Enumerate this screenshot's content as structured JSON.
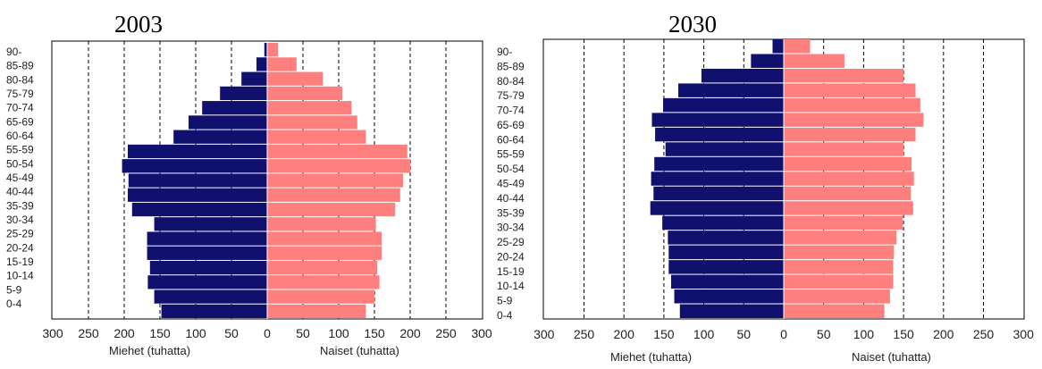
{
  "colors": {
    "men": "#10106e",
    "women": "#ff7f7f",
    "frame": "#000000",
    "grid": "#000000"
  },
  "chart_data": [
    {
      "type": "bar",
      "title": "2003",
      "orientation": "horizontal-population-pyramid",
      "categories": [
        "0-4",
        "5-9",
        "10-14",
        "15-19",
        "20-24",
        "25-29",
        "30-34",
        "35-39",
        "40-44",
        "45-49",
        "50-54",
        "55-59",
        "60-64",
        "65-69",
        "70-74",
        "75-79",
        "80-84",
        "85-89",
        "90-"
      ],
      "series": [
        {
          "name": "Miehet (tuhatta)",
          "values": [
            148,
            158,
            167,
            164,
            168,
            168,
            158,
            189,
            195,
            194,
            203,
            195,
            131,
            110,
            91,
            66,
            36,
            15,
            4
          ]
        },
        {
          "name": "Naiset (tuhatta)",
          "values": [
            138,
            150,
            157,
            154,
            160,
            160,
            152,
            179,
            186,
            190,
            200,
            196,
            138,
            126,
            118,
            105,
            78,
            41,
            15
          ]
        }
      ],
      "xlabel_left": "Miehet (tuhatta)",
      "xlabel_right": "Naiset (tuhatta)",
      "xticks": [
        "300",
        "250",
        "200",
        "150",
        "100",
        "50",
        "0",
        "50",
        "100",
        "150",
        "200",
        "250",
        "300"
      ],
      "xlim": [
        -300,
        300
      ],
      "grid": "vertical dashed"
    },
    {
      "type": "bar",
      "title": "2030",
      "orientation": "horizontal-population-pyramid",
      "categories": [
        "0-4",
        "5-9",
        "10-14",
        "15-19",
        "20-24",
        "25-29",
        "30-34",
        "35-39",
        "40-44",
        "45-49",
        "50-54",
        "55-59",
        "60-64",
        "65-69",
        "70-74",
        "75-79",
        "80-84",
        "85-89",
        "90-"
      ],
      "series": [
        {
          "name": "Miehet (tuhatta)",
          "values": [
            130,
            137,
            141,
            144,
            144,
            145,
            152,
            167,
            163,
            166,
            162,
            148,
            161,
            165,
            151,
            132,
            103,
            41,
            14
          ]
        },
        {
          "name": "Naiset (tuhatta)",
          "values": [
            126,
            133,
            137,
            137,
            138,
            141,
            149,
            162,
            159,
            163,
            160,
            150,
            165,
            175,
            171,
            165,
            150,
            76,
            33
          ]
        }
      ],
      "xlabel_left": "Miehet (tuhatta)",
      "xlabel_right": "Naiset (tuhatta)",
      "xticks": [
        "300",
        "250",
        "200",
        "150",
        "100",
        "50",
        "0",
        "50",
        "100",
        "150",
        "200",
        "250",
        "300"
      ],
      "xlim": [
        -300,
        300
      ],
      "grid": "vertical dashed"
    }
  ]
}
